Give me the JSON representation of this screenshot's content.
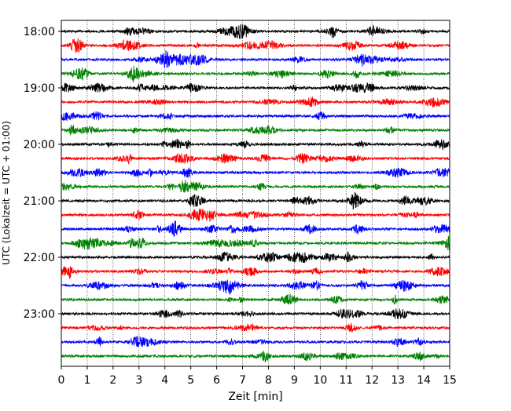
{
  "chart_data": {
    "type": "line",
    "title": "",
    "xlabel": "Zeit  [min]",
    "ylabel": "UTC (Lokalzeit = UTC + 01:00)",
    "xlim": [
      0,
      15
    ],
    "x_ticks": [
      0,
      1,
      2,
      3,
      4,
      5,
      6,
      7,
      8,
      9,
      10,
      11,
      12,
      13,
      14,
      15
    ],
    "x_tick_labels": [
      "0",
      "1",
      "2",
      "3",
      "4",
      "5",
      "6",
      "7",
      "8",
      "9",
      "10",
      "11",
      "12",
      "13",
      "14",
      "15"
    ],
    "y_tick_labels": [
      "18:00",
      "19:00",
      "20:00",
      "21:00",
      "22:00",
      "23:00"
    ],
    "grid": "vertical dotted lines at each minute",
    "trace_colors": [
      "#000000",
      "#ff0000",
      "#0000ff",
      "#008000"
    ],
    "trace_start_times": [
      "18:00",
      "18:15",
      "18:30",
      "18:45",
      "19:00",
      "19:15",
      "19:30",
      "19:45",
      "20:00",
      "20:15",
      "20:30",
      "20:45",
      "21:00",
      "21:15",
      "21:30",
      "21:45",
      "22:00",
      "22:15",
      "22:30",
      "22:45",
      "23:00",
      "23:15",
      "23:30",
      "23:45"
    ]
  }
}
